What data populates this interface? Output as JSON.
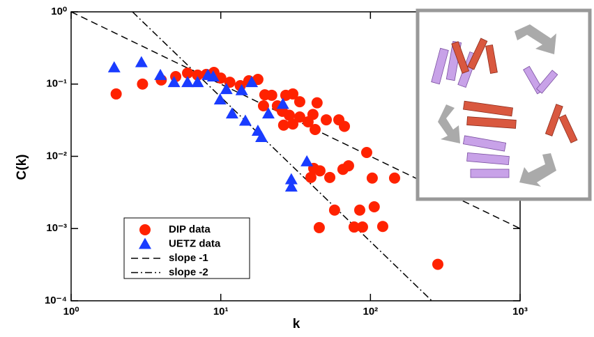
{
  "chart_data": {
    "type": "scatter",
    "x_label": "k",
    "y_label": "C(k)",
    "xscale": "log",
    "yscale": "log",
    "xlim": [
      1,
      1000
    ],
    "ylim": [
      0.0001,
      1
    ],
    "xticks": [
      {
        "value": 1,
        "label": "10⁰"
      },
      {
        "value": 10,
        "label": "10¹"
      },
      {
        "value": 100,
        "label": "10²"
      },
      {
        "value": 1000,
        "label": "10³"
      }
    ],
    "yticks": [
      {
        "value": 0.0001,
        "label": "10⁻⁴"
      },
      {
        "value": 0.001,
        "label": "10⁻³"
      },
      {
        "value": 0.01,
        "label": "10⁻²"
      },
      {
        "value": 0.1,
        "label": "10⁻¹"
      },
      {
        "value": 1,
        "label": "10⁰"
      }
    ],
    "legend": "lower left",
    "series": [
      {
        "name": "DIP data",
        "type": "scatter",
        "marker": "circle",
        "color": "#ff2200",
        "x": [
          2,
          3,
          4,
          5,
          6,
          7,
          8,
          9,
          10,
          11.5,
          13.5,
          15.4,
          17.7,
          19.7,
          21.9,
          23.9,
          27.2,
          30.3,
          33.7,
          19.3,
          25.8,
          28.7,
          30.3,
          26.3,
          33.7,
          38.3,
          41.3,
          44,
          50.7,
          61.5,
          67,
          42.7,
          41.8,
          46,
          40,
          53.5,
          65.5,
          71.4,
          94.4,
          102.8,
          145,
          106,
          84.8,
          57.6,
          45.5,
          77.8,
          88.5,
          120.8,
          282
        ],
        "values": [
          0.073,
          0.1,
          0.114,
          0.127,
          0.142,
          0.133,
          0.136,
          0.145,
          0.121,
          0.106,
          0.095,
          0.111,
          0.116,
          0.071,
          0.07,
          0.05,
          0.07,
          0.073,
          0.057,
          0.05,
          0.042,
          0.037,
          0.028,
          0.027,
          0.035,
          0.03,
          0.038,
          0.055,
          0.032,
          0.032,
          0.026,
          0.0235,
          0.0068,
          0.0063,
          0.0051,
          0.0051,
          0.0066,
          0.0074,
          0.0113,
          0.005,
          0.005,
          0.002,
          0.0018,
          0.0018,
          0.00103,
          0.00105,
          0.00105,
          0.00107,
          0.00032
        ]
      },
      {
        "name": "UETZ data",
        "type": "scatter",
        "marker": "triangle",
        "color": "#1a3cff",
        "x": [
          1.94,
          2.95,
          3.95,
          4.87,
          6,
          7,
          8.2,
          8.9,
          10.9,
          9.9,
          11.9,
          14.6,
          17.7,
          18.7,
          20.8,
          16.1,
          13.8,
          26,
          37.6,
          29.6,
          29.6
        ],
        "values": [
          0.17,
          0.2,
          0.133,
          0.106,
          0.106,
          0.106,
          0.133,
          0.127,
          0.085,
          0.061,
          0.039,
          0.031,
          0.0225,
          0.0184,
          0.039,
          0.106,
          0.082,
          0.053,
          0.0085,
          0.0048,
          0.0038
        ]
      },
      {
        "name": "slope -1",
        "type": "line",
        "dash": "10,6",
        "color": "#000000",
        "x": [
          1,
          1000
        ],
        "values": [
          1,
          0.001
        ]
      },
      {
        "name": "slope -2",
        "type": "line",
        "dash": "10,4,2,4",
        "color": "#000000",
        "x": [
          2.57,
          257
        ],
        "values": [
          1,
          0.0001
        ]
      }
    ]
  }
}
